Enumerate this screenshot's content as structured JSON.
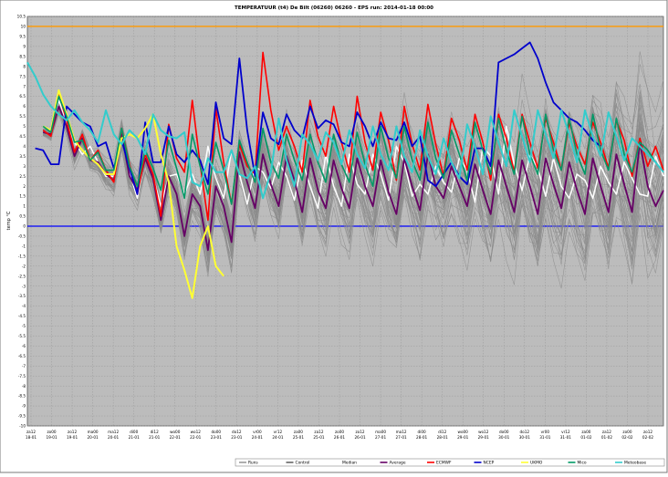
{
  "chart_data": {
    "type": "line",
    "title": "TEMPERATUUR (t4) De Bilt (06260) 06260 - EPS run: 2014-01-18 00:00",
    "ylabel": "temp °C",
    "ylim": [
      -10,
      10.5
    ],
    "yticks": [
      -10,
      -9.5,
      -9,
      -8.5,
      -8,
      -7.5,
      -7,
      -6.5,
      -6,
      -5.5,
      -5,
      -4.5,
      -4,
      -3.5,
      -3,
      -2.5,
      -2,
      -1.5,
      -1,
      -0.5,
      0,
      0.5,
      1,
      1.5,
      2,
      2.5,
      3,
      3.5,
      4,
      4.5,
      5,
      5.5,
      6,
      6.5,
      7,
      7.5,
      8,
      8.5,
      9,
      9.5,
      10,
      10.5
    ],
    "x_ticks": [
      {
        "time": "za12",
        "date": "18-01"
      },
      {
        "time": "zo00",
        "date": "19-01"
      },
      {
        "time": "zo12",
        "date": "19-01"
      },
      {
        "time": "ma00",
        "date": "20-01"
      },
      {
        "time": "ma12",
        "date": "20-01"
      },
      {
        "time": "di00",
        "date": "21-01"
      },
      {
        "time": "di12",
        "date": "21-01"
      },
      {
        "time": "wo00",
        "date": "22-01"
      },
      {
        "time": "wo12",
        "date": "22-01"
      },
      {
        "time": "do00",
        "date": "23-01"
      },
      {
        "time": "do12",
        "date": "23-01"
      },
      {
        "time": "vr00",
        "date": "24-01"
      },
      {
        "time": "vr12",
        "date": "24-01"
      },
      {
        "time": "za00",
        "date": "25-01"
      },
      {
        "time": "za12",
        "date": "25-01"
      },
      {
        "time": "zo00",
        "date": "26-01"
      },
      {
        "time": "zo12",
        "date": "26-01"
      },
      {
        "time": "ma00",
        "date": "27-01"
      },
      {
        "time": "ma12",
        "date": "27-01"
      },
      {
        "time": "di00",
        "date": "28-01"
      },
      {
        "time": "di12",
        "date": "28-01"
      },
      {
        "time": "wo00",
        "date": "29-01"
      },
      {
        "time": "wo12",
        "date": "29-01"
      },
      {
        "time": "do00",
        "date": "30-01"
      },
      {
        "time": "do12",
        "date": "30-01"
      },
      {
        "time": "vr00",
        "date": "31-01"
      },
      {
        "time": "vr12",
        "date": "31-01"
      },
      {
        "time": "za00",
        "date": "01-02"
      },
      {
        "time": "za12",
        "date": "01-02"
      },
      {
        "time": "zo00",
        "date": "02-02"
      },
      {
        "time": "zo12",
        "date": "02-02"
      }
    ],
    "reference_lines": [
      {
        "value": 10,
        "color": "#ff9900"
      },
      {
        "value": 0,
        "color": "#0000ff"
      }
    ],
    "grid": true,
    "legend_position": "bottom",
    "legend": [
      {
        "name": "Runs",
        "color": "#999999"
      },
      {
        "name": "Control",
        "color": "#666666"
      },
      {
        "name": "Median",
        "color": "#ffffff"
      },
      {
        "name": "Average",
        "color": "#660066"
      },
      {
        "name": "ECMWF",
        "color": "#ff0000"
      },
      {
        "name": "NCEP",
        "color": "#0000cc"
      },
      {
        "name": "UKMO",
        "color": "#ffff33"
      },
      {
        "name": "Mico",
        "color": "#009966"
      },
      {
        "name": "Meteobase",
        "color": "#33cccc"
      }
    ],
    "series": [
      {
        "name": "Median",
        "color": "#ffffff",
        "width": 1.5,
        "values": [
          null,
          null,
          5.0,
          4.8,
          6.3,
          5.2,
          4.2,
          3.6,
          4.0,
          3.2,
          2.5,
          2.5,
          4.4,
          2.7,
          1.4,
          3.6,
          2.5,
          1.0,
          2.5,
          2.6,
          1.6,
          2.6,
          1.6,
          4.0,
          2.4,
          1.4,
          3.8,
          2.6,
          1.1,
          3.0,
          2.7,
          1.9,
          3.2,
          2.5,
          1.3,
          3.3,
          2.0,
          0.9,
          3.6,
          2.0,
          1.0,
          3.6,
          2.1,
          1.6,
          3.6,
          2.6,
          1.3,
          4.0,
          3.2,
          1.5,
          2.1,
          1.6,
          3.0,
          2.2,
          1.7,
          3.4,
          2.8,
          1.2,
          4.0,
          3.5,
          1.6,
          5.0,
          3.1,
          1.8,
          3.6,
          2.9,
          1.5,
          3.4,
          2.0,
          1.4,
          2.6,
          2.3,
          1.4,
          3.0,
          2.2,
          1.6,
          3.2,
          2.4,
          1.6,
          1.5,
          3.5,
          2.5
        ]
      },
      {
        "name": "Average",
        "color": "#660066",
        "width": 1.8,
        "values": [
          null,
          null,
          4.7,
          4.6,
          6.0,
          5.0,
          3.5,
          4.4,
          3.3,
          3.2,
          2.6,
          2.3,
          4.6,
          2.5,
          1.8,
          3.4,
          2.4,
          0.3,
          2.5,
          1.6,
          -0.5,
          1.6,
          1.0,
          -1.2,
          2.0,
          1.0,
          -0.8,
          3.7,
          2.2,
          0.9,
          3.6,
          2.1,
          1.0,
          3.5,
          2.3,
          0.7,
          3.4,
          1.8,
          0.9,
          3.3,
          1.9,
          0.9,
          3.4,
          2.0,
          1.0,
          3.3,
          1.7,
          0.6,
          3.4,
          2.0,
          0.8,
          3.6,
          2.0,
          1.4,
          3.0,
          2.0,
          1.0,
          3.1,
          1.8,
          0.6,
          3.3,
          2.0,
          0.7,
          3.3,
          2.0,
          0.6,
          3.4,
          2.1,
          0.9,
          3.2,
          1.8,
          0.6,
          3.4,
          2.0,
          0.7,
          3.6,
          2.1,
          0.7,
          4.2,
          2.0,
          1.0,
          1.8
        ]
      },
      {
        "name": "ECMWF",
        "color": "#ff0000",
        "width": 1.6,
        "values": [
          null,
          null,
          4.8,
          4.5,
          6.6,
          5.3,
          3.7,
          4.6,
          3.3,
          3.8,
          2.8,
          2.2,
          4.9,
          3.1,
          1.6,
          3.6,
          2.6,
          0.5,
          5.1,
          3.4,
          2.7,
          6.3,
          3.1,
          0.3,
          5.9,
          3.2,
          1.1,
          4.1,
          3.0,
          2.6,
          8.7,
          5.8,
          3.8,
          5.0,
          4.0,
          2.7,
          6.3,
          4.5,
          3.5,
          6.0,
          4.2,
          2.7,
          6.5,
          4.2,
          2.8,
          5.7,
          4.3,
          2.3,
          6.0,
          4.1,
          2.8,
          6.1,
          4.1,
          2.5,
          5.4,
          4.3,
          2.8,
          5.6,
          4.2,
          2.3,
          5.6,
          4.4,
          2.7,
          5.6,
          4.2,
          2.9,
          5.4,
          4.2,
          2.8,
          5.2,
          4.0,
          3.1,
          5.2,
          4.2,
          2.9,
          5.3,
          4.3,
          2.5,
          4.4,
          3.0,
          4.0,
          2.8
        ]
      },
      {
        "name": "NCEP",
        "color": "#0000cc",
        "width": 1.8,
        "values": [
          null,
          3.9,
          3.8,
          3.1,
          3.1,
          6.0,
          5.6,
          5.2,
          5.0,
          4.0,
          4.2,
          2.9,
          4.3,
          2.9,
          1.6,
          5.2,
          3.2,
          3.2,
          5.0,
          3.6,
          3.2,
          3.8,
          3.3,
          2.1,
          6.2,
          4.4,
          4.1,
          8.4,
          4.8,
          2.5,
          5.7,
          4.4,
          4.1,
          5.6,
          4.8,
          4.4,
          6.0,
          4.9,
          5.3,
          5.1,
          4.2,
          4.0,
          5.7,
          5.0,
          4.0,
          5.2,
          4.4,
          4.3,
          5.2,
          4.0,
          4.5,
          2.3,
          2.0,
          2.6,
          3.2,
          2.5,
          2.1,
          3.9,
          3.9,
          3.0,
          8.2,
          8.4,
          8.6,
          8.9,
          9.2,
          8.4,
          7.2,
          6.2,
          5.8,
          5.4,
          5.2,
          4.8,
          4.3,
          4.0,
          null,
          null,
          null,
          null,
          null,
          null,
          null,
          null
        ]
      },
      {
        "name": "UKMO",
        "color": "#ffff33",
        "width": 2,
        "values": [
          null,
          null,
          5.0,
          4.8,
          6.8,
          5.6,
          4.3,
          3.8,
          3.4,
          3.1,
          2.6,
          2.6,
          4.4,
          4.6,
          4.4,
          4.9,
          5.6,
          3.6,
          2.2,
          -1.0,
          -2.2,
          -3.6,
          -1.0,
          0.0,
          -2.0,
          -2.5,
          null,
          null,
          null,
          null,
          null,
          null,
          null,
          null,
          null,
          null,
          null,
          null,
          null,
          null,
          null,
          null,
          null,
          null,
          null,
          null,
          null,
          null,
          null,
          null,
          null,
          null,
          null,
          null,
          null,
          null,
          null,
          null,
          null,
          null,
          null,
          null,
          null,
          null,
          null,
          null,
          null,
          null,
          null,
          null,
          null,
          null,
          null,
          null,
          null,
          null,
          null,
          null,
          null,
          null,
          null,
          null
        ]
      },
      {
        "name": "Mico",
        "color": "#009966",
        "width": 1.6,
        "values": [
          null,
          null,
          5.0,
          4.7,
          6.5,
          5.5,
          4.2,
          4.3,
          3.3,
          3.7,
          2.8,
          2.8,
          4.9,
          3.0,
          2.0,
          3.8,
          2.9,
          1.8,
          4.3,
          2.9,
          1.4,
          4.6,
          3.0,
          1.6,
          4.2,
          2.8,
          1.1,
          4.3,
          3.2,
          2.2,
          4.9,
          3.2,
          2.4,
          4.6,
          3.3,
          2.3,
          4.6,
          3.2,
          2.2,
          4.6,
          3.1,
          2.2,
          4.7,
          3.1,
          2.0,
          5.0,
          3.4,
          2.4,
          5.0,
          3.3,
          2.3,
          5.2,
          3.4,
          2.4,
          4.8,
          3.6,
          2.3,
          5.2,
          3.8,
          2.6,
          5.4,
          3.8,
          2.6,
          5.5,
          3.6,
          2.6,
          5.6,
          3.8,
          2.8,
          5.4,
          3.6,
          2.6,
          5.6,
          3.8,
          2.8,
          5.4,
          3.6,
          2.7,
          4.2,
          3.8,
          3.2,
          null
        ]
      },
      {
        "name": "Meteobase",
        "color": "#33cccc",
        "width": 2,
        "values": [
          8.2,
          7.5,
          6.6,
          6.0,
          5.6,
          5.3,
          5.8,
          5.2,
          4.8,
          4.2,
          5.8,
          4.6,
          4.1,
          4.8,
          4.4,
          3.6,
          5.6,
          4.8,
          4.5,
          4.4,
          4.7,
          2.2,
          2.0,
          3.4,
          2.7,
          2.7,
          3.8,
          2.6,
          2.4,
          3.0,
          1.4,
          2.7,
          5.4,
          3.3,
          2.0,
          4.6,
          4.1,
          3.3,
          4.7,
          4.2,
          3.1,
          4.8,
          3.6,
          2.9,
          5.0,
          3.6,
          2.8,
          5.0,
          3.5,
          2.7,
          4.8,
          3.5,
          2.6,
          4.4,
          3.2,
          2.4,
          5.1,
          4.0,
          2.6,
          5.5,
          4.2,
          3.0,
          5.8,
          4.5,
          3.2,
          5.8,
          4.6,
          3.4,
          5.8,
          4.6,
          3.2,
          5.8,
          4.5,
          3.5,
          5.7,
          4.5,
          3.3,
          4.4,
          4.0,
          3.6,
          3.2,
          2.7
        ]
      }
    ]
  }
}
